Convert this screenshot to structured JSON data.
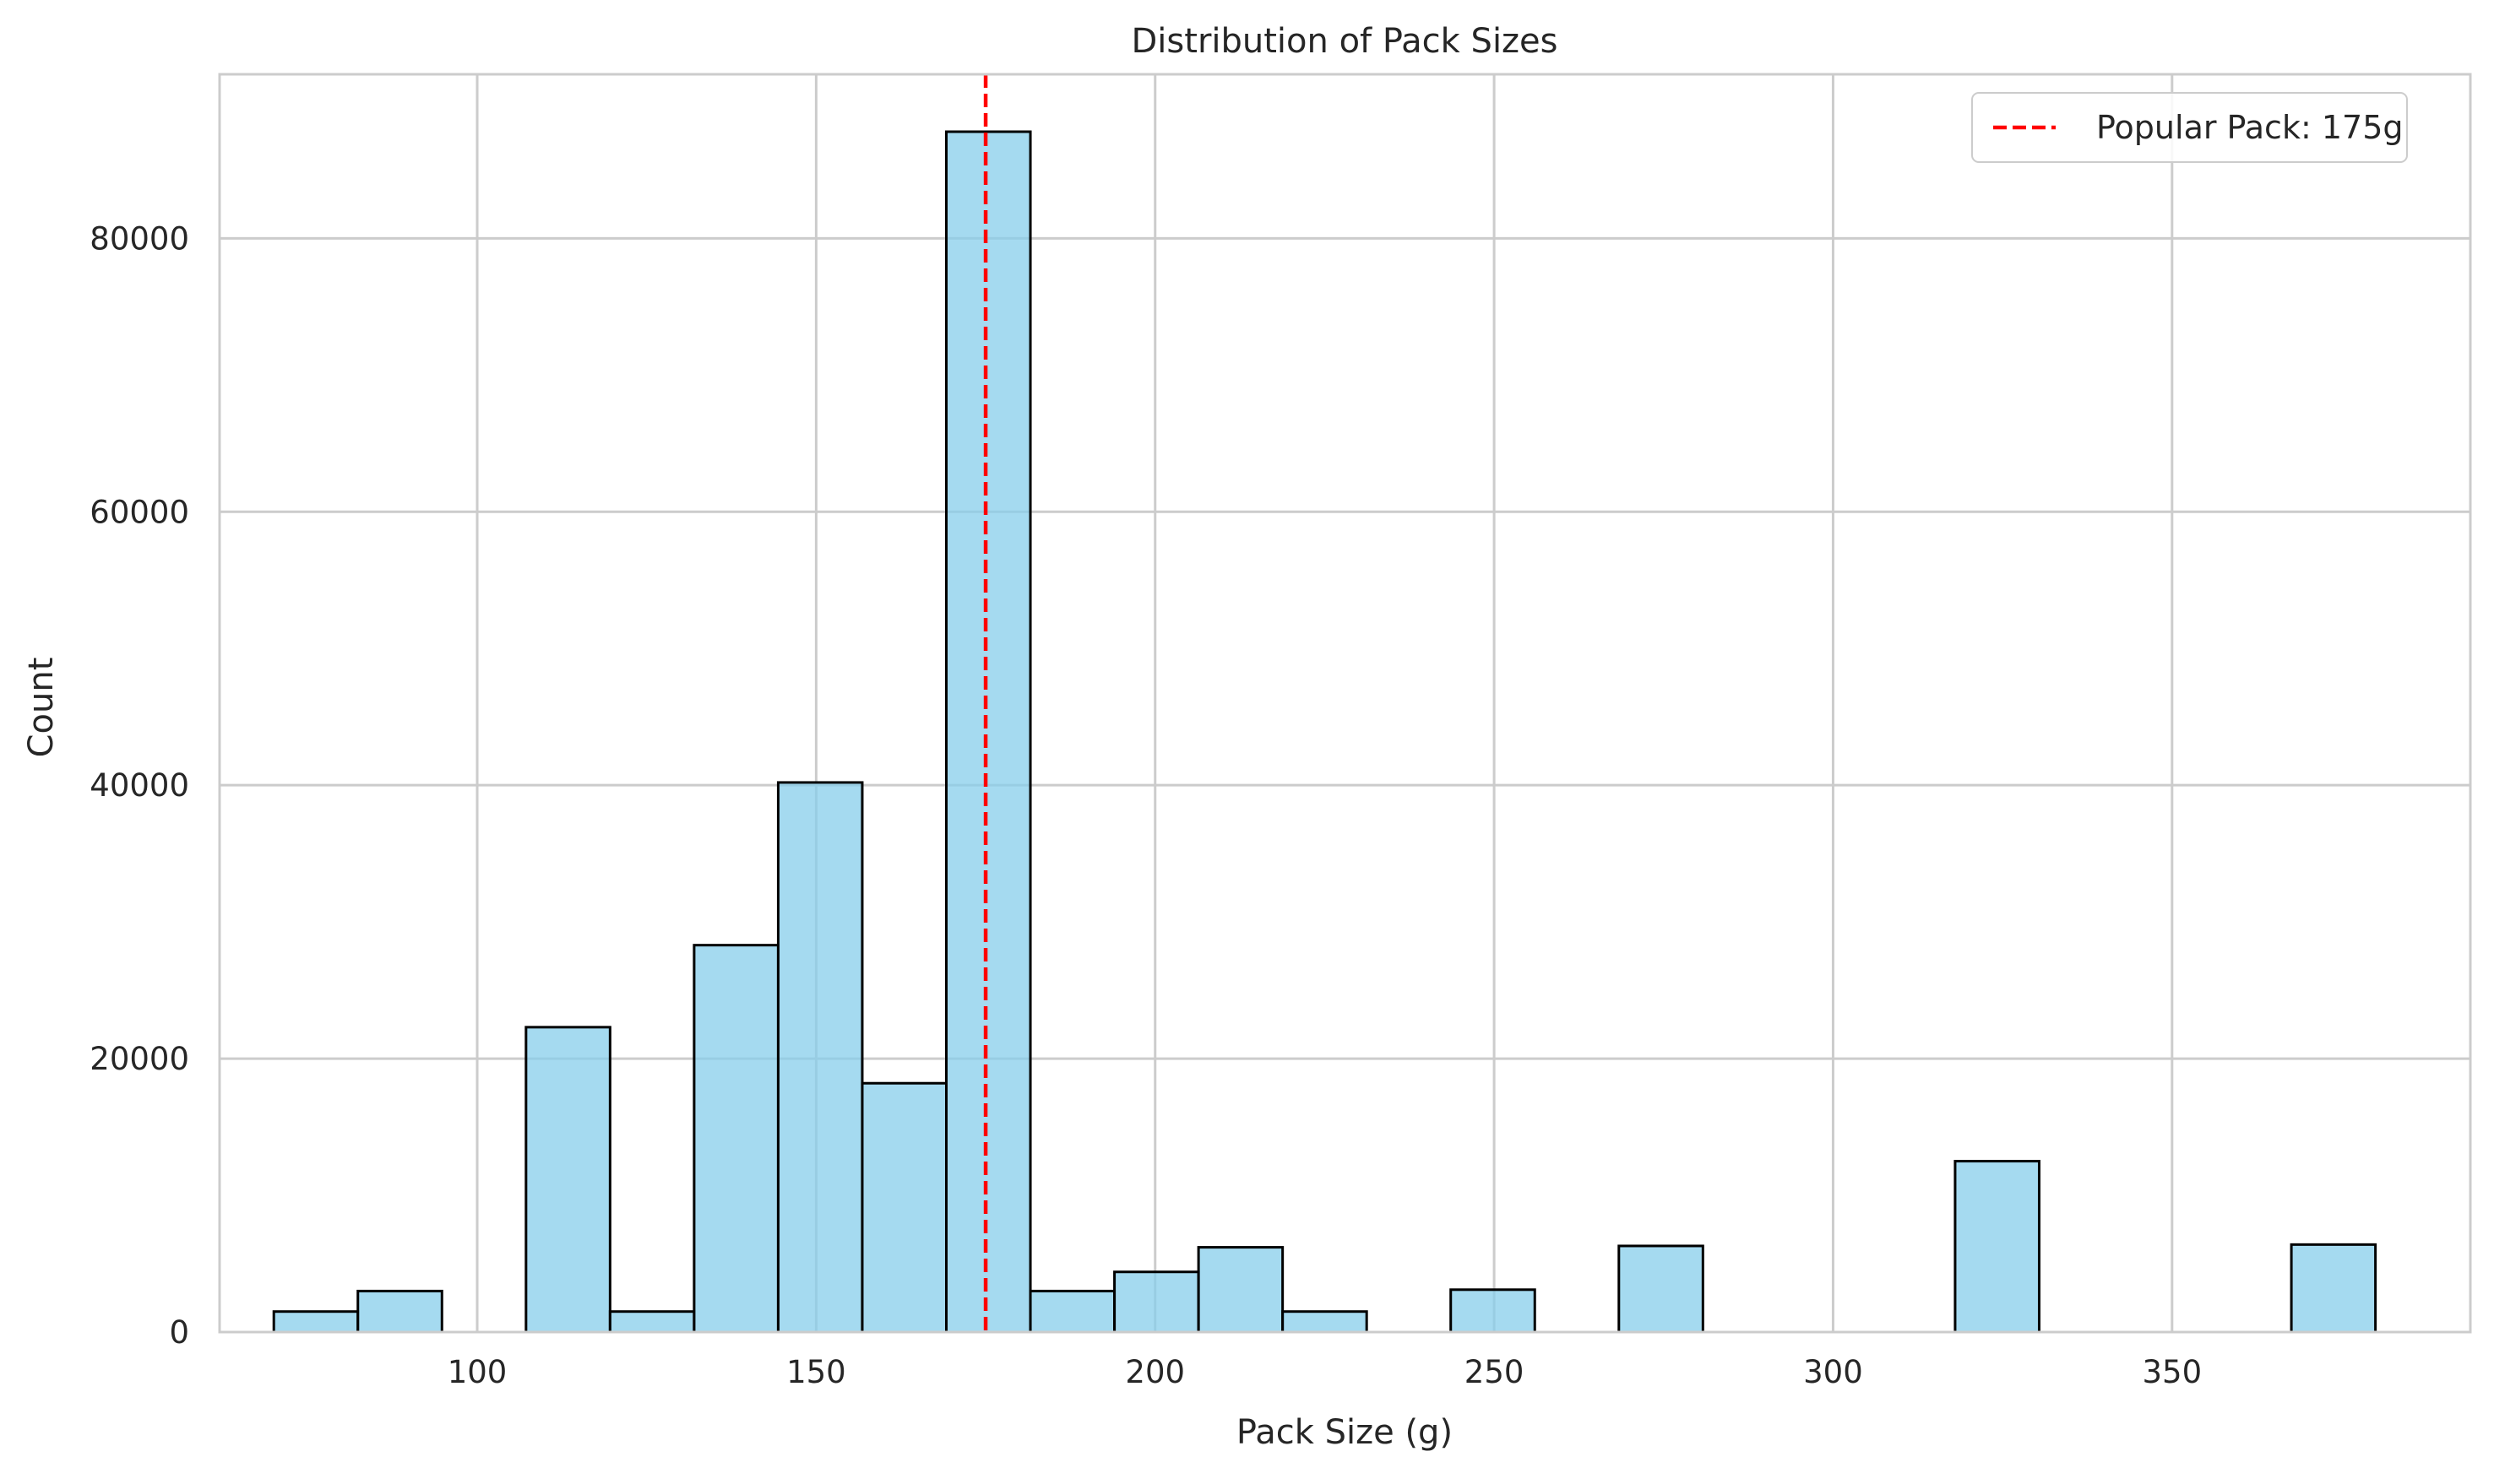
{
  "chart_data": {
    "type": "bar",
    "title": "Distribution of Pack Sizes",
    "xlabel": "Pack Size (g)",
    "ylabel": "Count",
    "xlim": [
      62,
      394
    ],
    "ylim": [
      0,
      92000
    ],
    "xticks": [
      100,
      150,
      200,
      250,
      300,
      350
    ],
    "yticks": [
      0,
      20000,
      40000,
      60000,
      80000
    ],
    "grid": true,
    "bar_fill": "#87ceeb",
    "bar_edge": "#000000",
    "bins": [
      {
        "start": 70.0,
        "end": 82.4,
        "count": 1500
      },
      {
        "start": 82.4,
        "end": 94.8,
        "count": 3000
      },
      {
        "start": 94.8,
        "end": 107.2,
        "count": 0
      },
      {
        "start": 107.2,
        "end": 119.6,
        "count": 22300
      },
      {
        "start": 119.6,
        "end": 132.0,
        "count": 1500
      },
      {
        "start": 132.0,
        "end": 144.4,
        "count": 28300
      },
      {
        "start": 144.4,
        "end": 156.8,
        "count": 40200
      },
      {
        "start": 156.8,
        "end": 169.2,
        "count": 18200
      },
      {
        "start": 169.2,
        "end": 181.6,
        "count": 87800
      },
      {
        "start": 181.6,
        "end": 194.0,
        "count": 3000
      },
      {
        "start": 194.0,
        "end": 206.4,
        "count": 4400
      },
      {
        "start": 206.4,
        "end": 218.8,
        "count": 6200
      },
      {
        "start": 218.8,
        "end": 231.2,
        "count": 1500
      },
      {
        "start": 231.2,
        "end": 243.6,
        "count": 0
      },
      {
        "start": 243.6,
        "end": 256.0,
        "count": 3100
      },
      {
        "start": 256.0,
        "end": 268.4,
        "count": 0
      },
      {
        "start": 268.4,
        "end": 280.8,
        "count": 6300
      },
      {
        "start": 280.8,
        "end": 293.2,
        "count": 0
      },
      {
        "start": 293.2,
        "end": 305.6,
        "count": 0
      },
      {
        "start": 305.6,
        "end": 318.0,
        "count": 0
      },
      {
        "start": 318.0,
        "end": 330.4,
        "count": 12500
      },
      {
        "start": 330.4,
        "end": 342.8,
        "count": 0
      },
      {
        "start": 342.8,
        "end": 355.2,
        "count": 0
      },
      {
        "start": 355.2,
        "end": 367.6,
        "count": 0
      },
      {
        "start": 367.6,
        "end": 380.0,
        "count": 6400
      }
    ],
    "reference_line": {
      "x": 175,
      "label": "Popular Pack: 175g",
      "color": "#ff0000",
      "style": "dashed"
    },
    "legend_position": "top-right"
  }
}
